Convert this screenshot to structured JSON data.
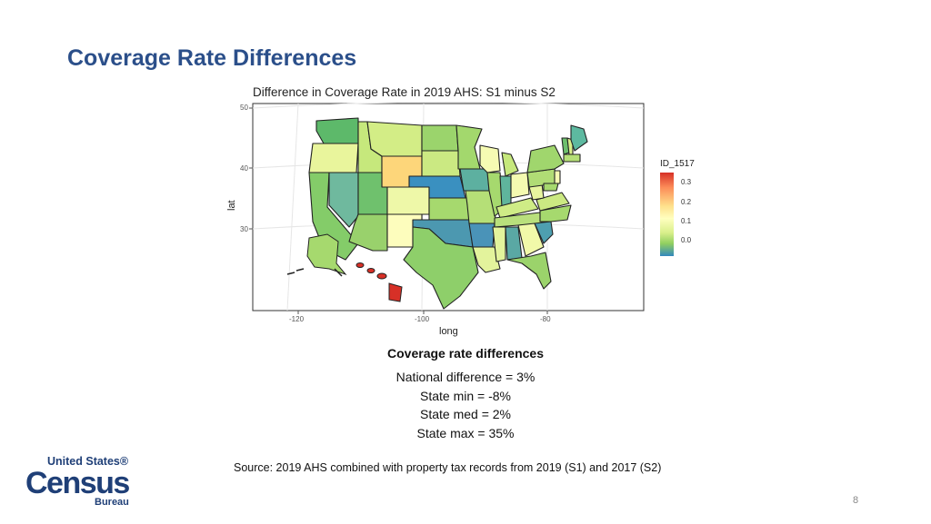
{
  "slide": {
    "title": "Coverage Rate Differences",
    "page_number": "8"
  },
  "map": {
    "title": "Difference in Coverage Rate in 2019 AHS: S1 minus S2",
    "xlabel": "long",
    "ylabel": "lat",
    "x_ticks": [
      "-120",
      "-100",
      "-80"
    ],
    "y_ticks": [
      "50",
      "40",
      "30"
    ],
    "legend": {
      "title": "ID_1517",
      "ticks": [
        "0.3",
        "0.2",
        "0.1",
        "0.0"
      ],
      "colors": [
        "#d73027",
        "#fc8d59",
        "#fee08b",
        "#ffffbf",
        "#d9ef8b",
        "#91cf60",
        "#3288bd"
      ]
    }
  },
  "stats": {
    "title": "Coverage rate differences",
    "national": "National difference = 3%",
    "min": "State min = -8%",
    "med": "State med = 2%",
    "max": "State max = 35%"
  },
  "source": "Source: 2019 AHS combined with property tax records from 2019 (S1) and 2017 (S2)",
  "logo": {
    "line1": "United States®",
    "line2": "Census",
    "line3": "Bureau"
  }
}
